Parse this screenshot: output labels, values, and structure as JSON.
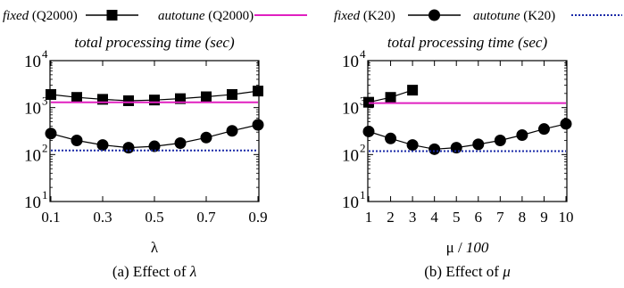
{
  "legend": [
    {
      "name_italic": "fixed",
      "name_rest": " (Q2000)",
      "marker": "square",
      "line_color": "#000000"
    },
    {
      "name_italic": "autotune",
      "name_rest": " (Q2000)",
      "marker": "none",
      "line_color": "#e020c0"
    },
    {
      "name_italic": "fixed",
      "name_rest": " (K20)",
      "marker": "circle",
      "line_color": "#000000"
    },
    {
      "name_italic": "autotune",
      "name_rest": " (K20)",
      "marker": "none",
      "line_color": "#1a2aa8",
      "dashed": true
    }
  ],
  "chart_data": [
    {
      "type": "line",
      "title": "total processing time (sec)",
      "caption": "(a) Effect of λ",
      "xlabel": "λ",
      "ylabel": "",
      "yscale": "log",
      "ylim": [
        10,
        10000
      ],
      "yticks": [
        "10",
        "10",
        "10",
        "10"
      ],
      "ytick_exponents": [
        "1",
        "2",
        "3",
        "4"
      ],
      "xlim": [
        0.1,
        0.9
      ],
      "xticks": [
        "0.1",
        "0.3",
        "0.5",
        "0.7",
        "0.9"
      ],
      "series": [
        {
          "name": "fixed (Q2000)",
          "marker": "square",
          "x": [
            0.1,
            0.2,
            0.3,
            0.4,
            0.5,
            0.6,
            0.7,
            0.8,
            0.9
          ],
          "values": [
            1900,
            1650,
            1500,
            1400,
            1450,
            1550,
            1700,
            1900,
            2250
          ]
        },
        {
          "name": "autotune (Q2000)",
          "marker": "none",
          "x": [
            0.1,
            0.9
          ],
          "values": [
            1300,
            1300
          ]
        },
        {
          "name": "fixed (K20)",
          "marker": "circle",
          "x": [
            0.1,
            0.2,
            0.3,
            0.4,
            0.5,
            0.6,
            0.7,
            0.8,
            0.9
          ],
          "values": [
            280,
            200,
            160,
            140,
            150,
            175,
            230,
            320,
            430
          ]
        },
        {
          "name": "autotune (K20)",
          "marker": "none",
          "dashed": true,
          "x": [
            0.1,
            0.9
          ],
          "values": [
            122,
            122
          ]
        }
      ]
    },
    {
      "type": "line",
      "title": "total processing time (sec)",
      "caption": "(b) Effect of μ",
      "xlabel": "μ / 100",
      "ylabel": "",
      "yscale": "log",
      "ylim": [
        10,
        10000
      ],
      "yticks": [
        "10",
        "10",
        "10",
        "10"
      ],
      "ytick_exponents": [
        "1",
        "2",
        "3",
        "4"
      ],
      "xlim": [
        1,
        10
      ],
      "xticks": [
        "1",
        "2",
        "3",
        "4",
        "5",
        "6",
        "7",
        "8",
        "9",
        "10"
      ],
      "series": [
        {
          "name": "fixed (Q2000)",
          "marker": "square",
          "x": [
            1,
            2,
            3
          ],
          "values": [
            1300,
            1650,
            2350
          ]
        },
        {
          "name": "autotune (Q2000)",
          "marker": "none",
          "x": [
            1,
            10
          ],
          "values": [
            1250,
            1250
          ]
        },
        {
          "name": "fixed (K20)",
          "marker": "circle",
          "x": [
            1,
            2,
            3,
            4,
            5,
            6,
            7,
            8,
            9,
            10
          ],
          "values": [
            310,
            220,
            160,
            130,
            140,
            165,
            200,
            260,
            350,
            450
          ]
        },
        {
          "name": "autotune (K20)",
          "marker": "none",
          "dashed": true,
          "x": [
            1,
            10
          ],
          "values": [
            118,
            118
          ]
        }
      ]
    }
  ]
}
